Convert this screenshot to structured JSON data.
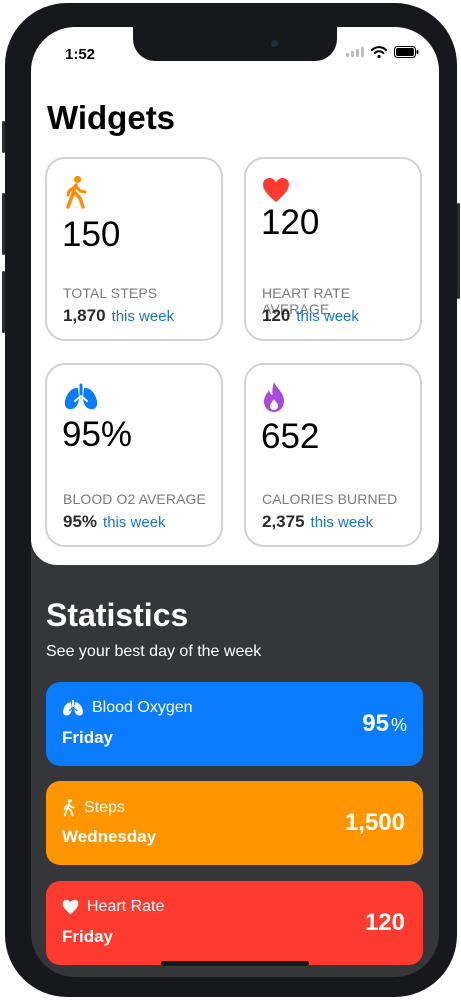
{
  "status_bar": {
    "time": "1:52",
    "icons": [
      "signal-icon",
      "wifi-icon",
      "battery-icon"
    ]
  },
  "widgets": {
    "title": "Widgets",
    "cards": [
      {
        "icon": "walking-person-icon",
        "color": "#ff8c00",
        "value": "150",
        "label": "Total Steps",
        "sub_value": "1,870",
        "sub_text": "this week"
      },
      {
        "icon": "heart-icon",
        "color": "#ff3b30",
        "value": "120",
        "label": "Heart Rate Average",
        "sub_value": "120",
        "sub_text": "this week"
      },
      {
        "icon": "lungs-icon",
        "color": "#0a7cff",
        "value": "95%",
        "label": "Blood O2 Average",
        "sub_value": "95%",
        "sub_text": "this week"
      },
      {
        "icon": "flame-icon",
        "color": "#a94ad8",
        "value": "652",
        "label": "Calories Burned",
        "sub_value": "2,375",
        "sub_text": "this week"
      }
    ]
  },
  "statistics": {
    "title": "Statistics",
    "subtitle": "See your best day of the week",
    "items": [
      {
        "icon": "lungs-icon",
        "label": "Blood Oxygen",
        "day": "Friday",
        "value": "95",
        "unit": "%",
        "color": "#0a7cff"
      },
      {
        "icon": "walking-person-icon",
        "label": "Steps",
        "day": "Wednesday",
        "value": "1,500",
        "unit": "",
        "color": "#ff9500"
      },
      {
        "icon": "heart-icon",
        "label": "Heart Rate",
        "day": "Friday",
        "value": "120",
        "unit": "",
        "color": "#ff3b30"
      }
    ]
  }
}
